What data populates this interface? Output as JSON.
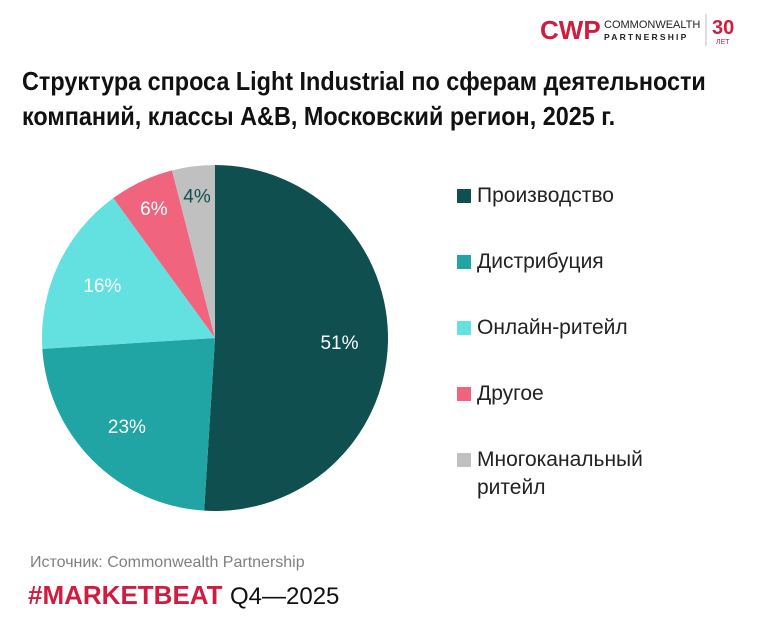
{
  "logo": {
    "text": "CWP",
    "line1": "COMMONWEALTH",
    "line2": "PARTNERSHIP",
    "years": "30",
    "years_label": "ЛЕТ",
    "color": "#d01c3f"
  },
  "title_line1": "Структура спроса Light Industrial по сферам деятельности",
  "title_line2": "компаний, классы A&B, Московский регион, 2025 г.",
  "chart_data": {
    "type": "pie",
    "categories": [
      "Производство",
      "Дистрибуция",
      "Онлайн-ритейл",
      "Другое",
      "Многоканальный ритейл"
    ],
    "values": [
      51,
      23,
      16,
      6,
      4
    ],
    "labels": [
      "51%",
      "23%",
      "16%",
      "6%",
      "4%"
    ],
    "colors": [
      "#0f4f50",
      "#21a4a4",
      "#63e0e0",
      "#f0657d",
      "#c0c0c0"
    ],
    "label_colors": [
      "#ffffff",
      "#ffffff",
      "#ffffff",
      "#ffffff",
      "#0f4f50"
    ],
    "legend_position": "right"
  },
  "source": "Источник: Commonwealth Partnership",
  "marketbeat": "#MARKETBEAT",
  "period": "Q4—2025"
}
